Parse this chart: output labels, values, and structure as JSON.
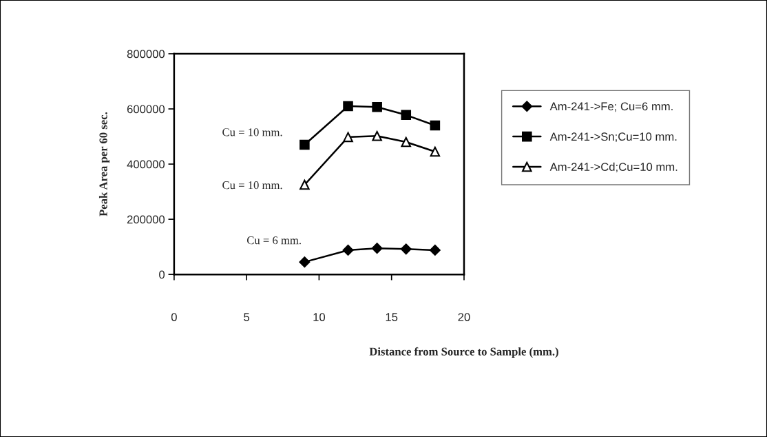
{
  "chart_data": {
    "type": "line",
    "xlabel": "Distance from Source to Sample (mm.)",
    "ylabel": "Peak Area per 60 sec.",
    "x": [
      9,
      12,
      14,
      16,
      18
    ],
    "series": [
      {
        "name": "Am-241->Fe; Cu=6 mm.",
        "color": "#000000",
        "marker": "diamond",
        "values": [
          45000,
          88000,
          95000,
          92000,
          88000
        ]
      },
      {
        "name": "Am-241->Sn;Cu=10 mm.",
        "color": "#000000",
        "marker": "square",
        "values": [
          470000,
          610000,
          607000,
          578000,
          540000
        ]
      },
      {
        "name": "Am-241->Cd;Cu=10 mm.",
        "color": "#000000",
        "marker": "triangle",
        "values": [
          325000,
          498000,
          502000,
          480000,
          445000
        ]
      }
    ],
    "annotations": [
      "Cu = 10 mm.",
      "Cu = 10 mm.",
      "Cu = 6 mm."
    ],
    "xlim": [
      0,
      20
    ],
    "xticks": [
      0,
      5,
      10,
      15,
      20
    ],
    "ylim": [
      0,
      800000
    ],
    "yticks": [
      0,
      200000,
      400000,
      600000,
      800000
    ],
    "grid": false,
    "legend": "right",
    "line_style": "solid"
  }
}
